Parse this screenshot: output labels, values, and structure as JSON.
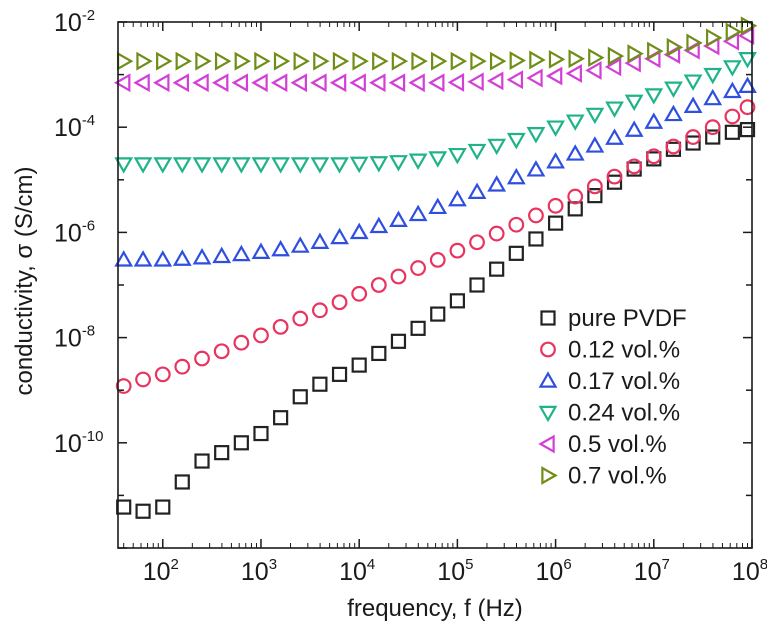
{
  "chart_data": {
    "type": "scatter",
    "xlabel": "frequency, f (Hz)",
    "ylabel": "conductivity, σ (S/cm)",
    "x_scale": "log",
    "y_scale": "log",
    "xlim": [
      35,
      100000000
    ],
    "ylim": [
      1e-12,
      0.01
    ],
    "x_ticks": [
      {
        "value": 100,
        "base": "10",
        "exp": "2"
      },
      {
        "value": 1000,
        "base": "10",
        "exp": "3"
      },
      {
        "value": 10000,
        "base": "10",
        "exp": "4"
      },
      {
        "value": 100000,
        "base": "10",
        "exp": "5"
      },
      {
        "value": 1000000,
        "base": "10",
        "exp": "6"
      },
      {
        "value": 10000000,
        "base": "10",
        "exp": "7"
      },
      {
        "value": 100000000,
        "base": "10",
        "exp": "8"
      }
    ],
    "y_ticks": [
      {
        "value": 1e-10,
        "base": "10",
        "exp": "-10"
      },
      {
        "value": 1e-08,
        "base": "10",
        "exp": "-8"
      },
      {
        "value": 1e-06,
        "base": "10",
        "exp": "-6"
      },
      {
        "value": 0.0001,
        "base": "10",
        "exp": "-4"
      },
      {
        "value": 0.01,
        "base": "10",
        "exp": "-2"
      }
    ],
    "grid": false,
    "legend_position": "bottom-right",
    "series": [
      {
        "name": "pure PVDF",
        "marker": "square",
        "color": "#222222",
        "x": [
          40,
          63,
          100,
          158,
          251,
          398,
          631,
          1000,
          1585,
          2512,
          3981,
          6310,
          10000,
          15849,
          25119,
          39811,
          63096,
          100000,
          158489,
          251189,
          398107,
          630957,
          1000000,
          1584893,
          2511886,
          3981072,
          6309573,
          10000000,
          15848932,
          25118864,
          39810717,
          63095734,
          90000000
        ],
        "y": [
          6e-12,
          5e-12,
          6e-12,
          1.8e-11,
          4.5e-11,
          6.5e-11,
          1e-10,
          1.5e-10,
          3e-10,
          7.5e-10,
          1.3e-09,
          2e-09,
          3e-09,
          5e-09,
          8.5e-09,
          1.5e-08,
          2.8e-08,
          5e-08,
          1e-07,
          2e-07,
          4e-07,
          7.5e-07,
          1.5e-06,
          2.8e-06,
          5e-06,
          9e-06,
          1.6e-05,
          2.5e-05,
          3.8e-05,
          5e-05,
          6.5e-05,
          8e-05,
          9e-05
        ]
      },
      {
        "name": "0.12 vol.%",
        "marker": "circle",
        "color": "#e8345f",
        "x": [
          40,
          63,
          100,
          158,
          251,
          398,
          631,
          1000,
          1585,
          2512,
          3981,
          6310,
          10000,
          15849,
          25119,
          39811,
          63096,
          100000,
          158489,
          251189,
          398107,
          630957,
          1000000,
          1584893,
          2511886,
          3981072,
          6309573,
          10000000,
          15848932,
          25118864,
          39810717,
          63095734,
          90000000
        ],
        "y": [
          1.2e-09,
          1.6e-09,
          2e-09,
          2.8e-09,
          4e-09,
          5.5e-09,
          8e-09,
          1.1e-08,
          1.6e-08,
          2.3e-08,
          3.3e-08,
          4.7e-08,
          6.8e-08,
          1e-07,
          1.45e-07,
          2.1e-07,
          3e-07,
          4.5e-07,
          6.5e-07,
          9.5e-07,
          1.4e-06,
          2.1e-06,
          3.2e-06,
          4.8e-06,
          7.5e-06,
          1.15e-05,
          1.8e-05,
          2.8e-05,
          4.3e-05,
          6.5e-05,
          0.0001,
          0.00016,
          0.00024
        ]
      },
      {
        "name": "0.17 vol.%",
        "marker": "triangle-up",
        "color": "#2e4fe0",
        "x": [
          40,
          63,
          100,
          158,
          251,
          398,
          631,
          1000,
          1585,
          2512,
          3981,
          6310,
          10000,
          15849,
          25119,
          39811,
          63096,
          100000,
          158489,
          251189,
          398107,
          630957,
          1000000,
          1584893,
          2511886,
          3981072,
          6309573,
          10000000,
          15848932,
          25118864,
          39810717,
          63095734,
          90000000
        ],
        "y": [
          3e-07,
          3e-07,
          3e-07,
          3.1e-07,
          3.3e-07,
          3.5e-07,
          3.8e-07,
          4.2e-07,
          4.7e-07,
          5.5e-07,
          6.5e-07,
          8e-07,
          1e-06,
          1.3e-06,
          1.7e-06,
          2.2e-06,
          3e-06,
          4.2e-06,
          5.8e-06,
          8e-06,
          1.1e-05,
          1.55e-05,
          2.2e-05,
          3.1e-05,
          4.4e-05,
          6.2e-05,
          8.8e-05,
          0.000125,
          0.000175,
          0.00025,
          0.00035,
          0.00048,
          0.0006
        ]
      },
      {
        "name": "0.24 vol.%",
        "marker": "triangle-down",
        "color": "#1fb38a",
        "x": [
          40,
          63,
          100,
          158,
          251,
          398,
          631,
          1000,
          1585,
          2512,
          3981,
          6310,
          10000,
          15849,
          25119,
          39811,
          63096,
          100000,
          158489,
          251189,
          398107,
          630957,
          1000000,
          1584893,
          2511886,
          3981072,
          6309573,
          10000000,
          15848932,
          25118864,
          39810717,
          63095734,
          90000000
        ],
        "y": [
          2e-05,
          2e-05,
          2e-05,
          2e-05,
          2e-05,
          2e-05,
          2e-05,
          2e-05,
          2e-05,
          2e-05,
          2e-05,
          2e-05,
          2.05e-05,
          2.1e-05,
          2.2e-05,
          2.35e-05,
          2.6e-05,
          3e-05,
          3.6e-05,
          4.5e-05,
          5.8e-05,
          7.5e-05,
          0.0001,
          0.00013,
          0.000175,
          0.00023,
          0.00031,
          0.00041,
          0.00055,
          0.00075,
          0.001,
          0.0014,
          0.002
        ]
      },
      {
        "name": "0.5 vol.%",
        "marker": "triangle-left",
        "color": "#d33fd6",
        "x": [
          40,
          63,
          100,
          158,
          251,
          398,
          631,
          1000,
          1585,
          2512,
          3981,
          6310,
          10000,
          15849,
          25119,
          39811,
          63096,
          100000,
          158489,
          251189,
          398107,
          630957,
          1000000,
          1584893,
          2511886,
          3981072,
          6309573,
          10000000,
          15848932,
          25118864,
          39810717,
          63095734,
          90000000
        ],
        "y": [
          0.0007,
          0.0007,
          0.0007,
          0.0007,
          0.0007,
          0.0007,
          0.0007,
          0.0007,
          0.0007,
          0.0007,
          0.0007,
          0.0007,
          0.0007,
          0.0007,
          0.0007,
          0.0007,
          0.0007,
          0.00071,
          0.00073,
          0.00076,
          0.0008,
          0.00086,
          0.00094,
          0.00105,
          0.0012,
          0.0014,
          0.00165,
          0.002,
          0.0024,
          0.0029,
          0.0035,
          0.0043,
          0.0055
        ]
      },
      {
        "name": "0.7 vol.%",
        "marker": "triangle-right",
        "color": "#6f8d17",
        "x": [
          40,
          63,
          100,
          158,
          251,
          398,
          631,
          1000,
          1585,
          2512,
          3981,
          6310,
          10000,
          15849,
          25119,
          39811,
          63096,
          100000,
          158489,
          251189,
          398107,
          630957,
          1000000,
          1584893,
          2511886,
          3981072,
          6309573,
          10000000,
          15848932,
          25118864,
          39810717,
          63095734,
          90000000
        ],
        "y": [
          0.0018,
          0.0018,
          0.0018,
          0.0018,
          0.0018,
          0.0018,
          0.0018,
          0.0018,
          0.0018,
          0.0018,
          0.0018,
          0.0018,
          0.0018,
          0.0018,
          0.0018,
          0.0018,
          0.0018,
          0.0018,
          0.0018,
          0.0018,
          0.00185,
          0.0019,
          0.00195,
          0.002,
          0.0021,
          0.00225,
          0.0025,
          0.0028,
          0.0033,
          0.004,
          0.005,
          0.0065,
          0.0085
        ]
      }
    ]
  }
}
